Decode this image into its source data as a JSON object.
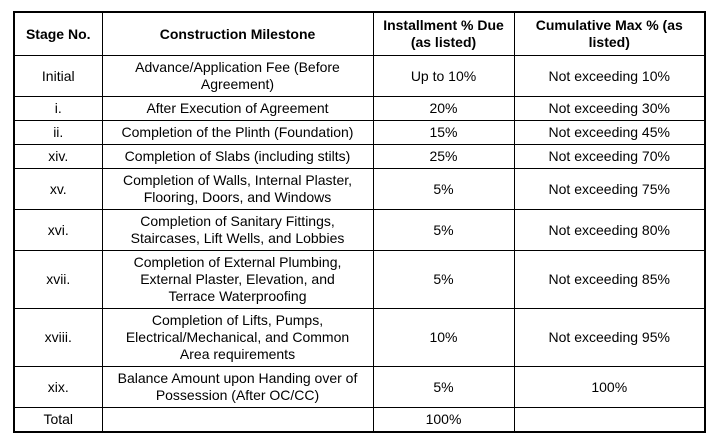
{
  "colors": {
    "border": "#000000",
    "text": "#000000",
    "background": "#ffffff"
  },
  "table": {
    "headers": [
      "Stage No.",
      "Construction Milestone",
      "Installment % Due\n(as listed)",
      "Cumulative Max % (as\nlisted)"
    ],
    "rows": [
      {
        "stage": "Initial",
        "milestone": "Advance/Application Fee (Before\nAgreement)",
        "installment": "Up to 10%",
        "cumulative": "Not exceeding 10%"
      },
      {
        "stage": "i.",
        "milestone": "After Execution of Agreement",
        "installment": "20%",
        "cumulative": "Not exceeding 30%"
      },
      {
        "stage": "ii.",
        "milestone": "Completion of the Plinth (Foundation)",
        "installment": "15%",
        "cumulative": "Not exceeding 45%"
      },
      {
        "stage": "xiv.",
        "milestone": "Completion of Slabs (including stilts)",
        "installment": "25%",
        "cumulative": "Not exceeding 70%"
      },
      {
        "stage": "xv.",
        "milestone": "Completion of Walls, Internal Plaster,\nFlooring, Doors, and Windows",
        "installment": "5%",
        "cumulative": "Not exceeding 75%"
      },
      {
        "stage": "xvi.",
        "milestone": "Completion of Sanitary Fittings,\nStaircases, Lift Wells, and Lobbies",
        "installment": "5%",
        "cumulative": "Not exceeding 80%"
      },
      {
        "stage": "xvii.",
        "milestone": "Completion of External Plumbing,\nExternal Plaster, Elevation, and\nTerrace Waterproofing",
        "installment": "5%",
        "cumulative": "Not exceeding 85%"
      },
      {
        "stage": "xviii.",
        "milestone": "Completion of Lifts, Pumps,\nElectrical/Mechanical, and Common\nArea requirements",
        "installment": "10%",
        "cumulative": "Not exceeding 95%"
      },
      {
        "stage": "xix.",
        "milestone": "Balance Amount upon Handing over of\nPossession (After OC/CC)",
        "installment": "5%",
        "cumulative": "100%"
      },
      {
        "stage": "Total",
        "milestone": "",
        "installment": "100%",
        "cumulative": ""
      }
    ]
  }
}
